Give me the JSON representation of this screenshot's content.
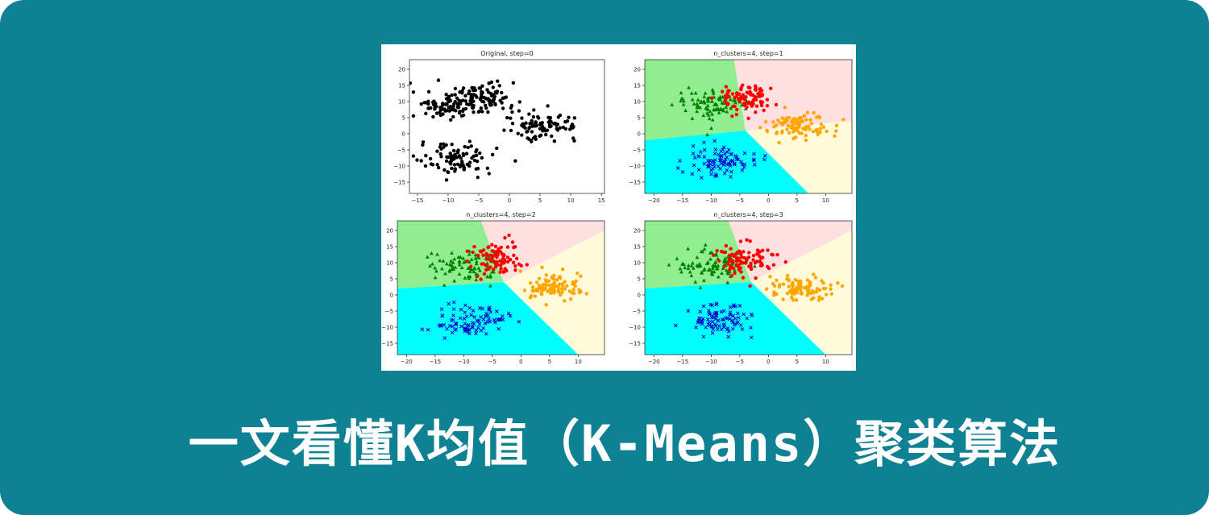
{
  "figure": {
    "panels": [
      {
        "title": "Original, step=0",
        "xticks": [
          "−15",
          "−10",
          "−5",
          "0",
          "5",
          "10",
          "15"
        ],
        "yticks": [
          "20",
          "15",
          "10",
          "5",
          "0",
          "−5",
          "−10",
          "−15"
        ]
      },
      {
        "title": "n_clusters=4, step=1",
        "xticks": [
          "−20",
          "−15",
          "−10",
          "−5",
          "0",
          "5",
          "10"
        ],
        "yticks": [
          "20",
          "15",
          "10",
          "5",
          "0",
          "−5",
          "−10",
          "−15"
        ]
      },
      {
        "title": "n_clusters=4, step=2",
        "xticks": [
          "−20",
          "−15",
          "−10",
          "−5",
          "0",
          "5",
          "10"
        ],
        "yticks": [
          "20",
          "15",
          "10",
          "5",
          "0",
          "−5",
          "−10",
          "−15"
        ]
      },
      {
        "title": "n_clusters=4, step=3",
        "xticks": [
          "−20",
          "−15",
          "−10",
          "−5",
          "0",
          "5",
          "10"
        ],
        "yticks": [
          "20",
          "15",
          "10",
          "5",
          "0",
          "−5",
          "−10",
          "−15"
        ]
      }
    ]
  },
  "headline": "一文看懂K均值（K-Means）聚类算法"
}
